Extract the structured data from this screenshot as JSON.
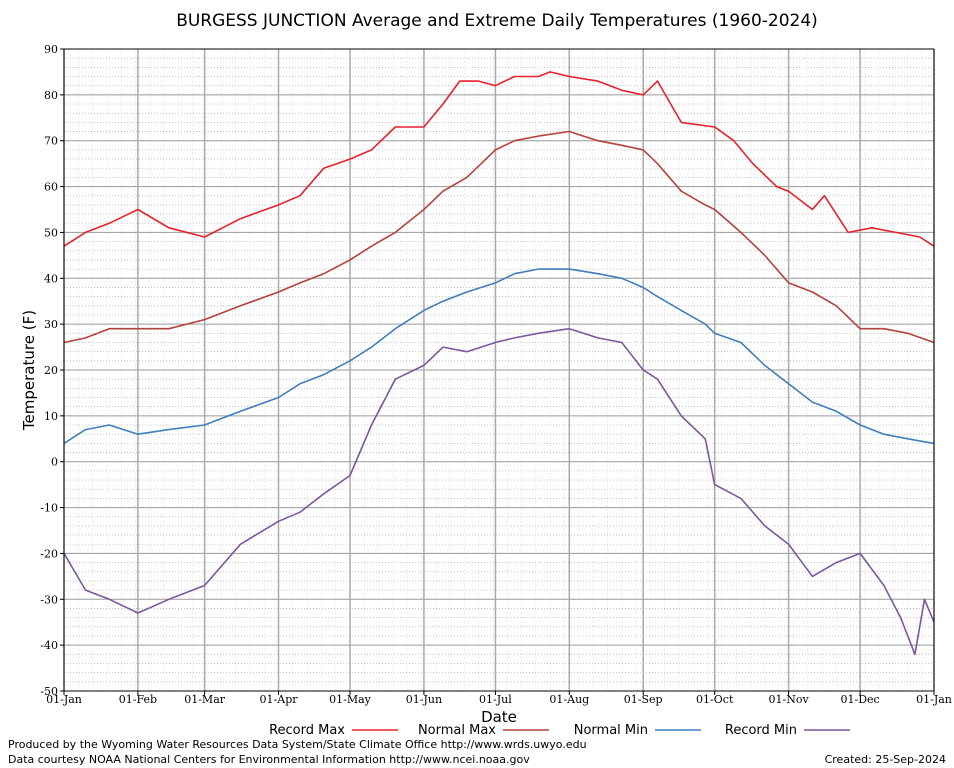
{
  "chart_data": {
    "type": "line",
    "title": "BURGESS JUNCTION Average and Extreme Daily Temperatures (1960-2024)",
    "xlabel": "Date",
    "ylabel": "Temperature (F)",
    "ylim": [
      -50,
      90
    ],
    "yticks": [
      90,
      80,
      70,
      60,
      50,
      40,
      30,
      20,
      10,
      0,
      -10,
      -20,
      -30,
      -40,
      -50
    ],
    "x_unit": "day_of_year",
    "xlim": [
      1,
      366
    ],
    "xticks": [
      {
        "label": "01-Jan",
        "day": 1
      },
      {
        "label": "01-Feb",
        "day": 32
      },
      {
        "label": "01-Mar",
        "day": 60
      },
      {
        "label": "01-Apr",
        "day": 91
      },
      {
        "label": "01-May",
        "day": 121
      },
      {
        "label": "01-Jun",
        "day": 152
      },
      {
        "label": "01-Jul",
        "day": 182
      },
      {
        "label": "01-Aug",
        "day": 213
      },
      {
        "label": "01-Sep",
        "day": 244
      },
      {
        "label": "01-Oct",
        "day": 274
      },
      {
        "label": "01-Nov",
        "day": 305
      },
      {
        "label": "01-Dec",
        "day": 335
      },
      {
        "label": "01-Jan",
        "day": 366
      }
    ],
    "grid": true,
    "legend_position": "bottom",
    "series": [
      {
        "name": "Record Max",
        "color": "#e8212b",
        "x": [
          1,
          10,
          20,
          32,
          45,
          60,
          75,
          91,
          100,
          110,
          121,
          130,
          140,
          152,
          160,
          167,
          175,
          182,
          190,
          200,
          205,
          213,
          225,
          235,
          244,
          250,
          260,
          274,
          282,
          290,
          300,
          305,
          315,
          320,
          330,
          340,
          350,
          360,
          366
        ],
        "y": [
          47,
          50,
          52,
          55,
          51,
          49,
          53,
          56,
          58,
          64,
          66,
          68,
          73,
          73,
          78,
          83,
          83,
          82,
          84,
          84,
          85,
          84,
          83,
          81,
          80,
          83,
          74,
          73,
          70,
          65,
          60,
          59,
          55,
          58,
          50,
          51,
          50,
          49,
          47
        ]
      },
      {
        "name": "Normal Max",
        "color": "#b5413d",
        "x": [
          1,
          10,
          20,
          32,
          45,
          60,
          75,
          91,
          100,
          110,
          121,
          130,
          140,
          152,
          160,
          170,
          182,
          190,
          200,
          213,
          225,
          235,
          244,
          250,
          260,
          270,
          274,
          285,
          295,
          305,
          315,
          325,
          335,
          345,
          355,
          366
        ],
        "y": [
          26,
          27,
          29,
          29,
          29,
          31,
          34,
          37,
          39,
          41,
          44,
          47,
          50,
          55,
          59,
          62,
          68,
          70,
          71,
          72,
          70,
          69,
          68,
          65,
          59,
          56,
          55,
          50,
          45,
          39,
          37,
          34,
          29,
          29,
          28,
          26
        ]
      },
      {
        "name": "Normal Min",
        "color": "#3f7fbf",
        "x": [
          1,
          10,
          20,
          32,
          45,
          60,
          75,
          91,
          100,
          110,
          121,
          130,
          140,
          152,
          160,
          170,
          182,
          190,
          200,
          213,
          225,
          235,
          244,
          250,
          260,
          270,
          274,
          285,
          295,
          305,
          315,
          325,
          335,
          345,
          355,
          366
        ],
        "y": [
          4,
          7,
          8,
          6,
          7,
          8,
          11,
          14,
          17,
          19,
          22,
          25,
          29,
          33,
          35,
          37,
          39,
          41,
          42,
          42,
          41,
          40,
          38,
          36,
          33,
          30,
          28,
          26,
          21,
          17,
          13,
          11,
          8,
          6,
          5,
          4
        ]
      },
      {
        "name": "Record Min",
        "color": "#7b579f",
        "x": [
          1,
          10,
          20,
          32,
          45,
          60,
          75,
          91,
          100,
          110,
          121,
          130,
          140,
          152,
          160,
          170,
          182,
          190,
          200,
          213,
          225,
          235,
          244,
          250,
          260,
          270,
          274,
          285,
          295,
          305,
          315,
          325,
          335,
          345,
          352,
          358,
          362,
          366
        ],
        "y": [
          -20,
          -28,
          -30,
          -33,
          -30,
          -27,
          -18,
          -13,
          -11,
          -7,
          -3,
          8,
          18,
          21,
          25,
          24,
          26,
          27,
          28,
          29,
          27,
          26,
          20,
          18,
          10,
          5,
          -5,
          -8,
          -14,
          -18,
          -25,
          -22,
          -20,
          -27,
          -34,
          -42,
          -30,
          -35
        ]
      }
    ]
  },
  "footer": {
    "left_line1": "Produced by the Wyoming Water Resources Data System/State Climate Office http://www.wrds.uwyo.edu",
    "left_line2": "Data courtesy NOAA National Centers for Environmental Information http://www.ncei.noaa.gov",
    "created": "Created:  25-Sep-2024"
  }
}
